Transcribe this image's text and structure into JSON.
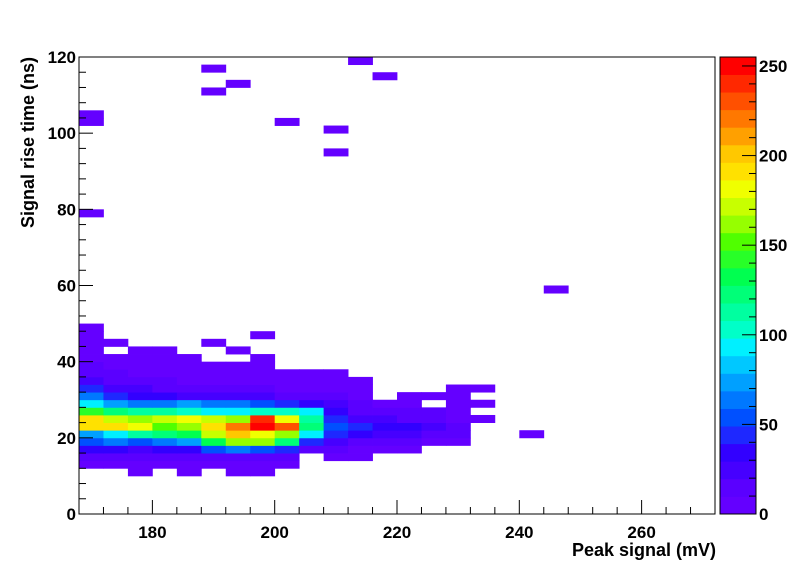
{
  "chart_data": {
    "type": "heatmap",
    "title": "",
    "xlabel": "Peak signal (mV)",
    "ylabel": "Signal rise time (ns)",
    "xlim": [
      168,
      272
    ],
    "ylim": [
      0,
      120
    ],
    "x_ticks": [
      180,
      200,
      220,
      240,
      260
    ],
    "y_ticks": [
      0,
      20,
      40,
      60,
      80,
      100,
      120
    ],
    "bin_width_x": 4,
    "bin_width_y": 2,
    "colorbar": {
      "min": 0,
      "max": 255,
      "ticks": [
        0,
        50,
        100,
        150,
        200,
        250
      ]
    },
    "cells": [
      [
        168,
        12,
        8
      ],
      [
        172,
        12,
        8
      ],
      [
        176,
        12,
        8
      ],
      [
        180,
        12,
        8
      ],
      [
        184,
        12,
        8
      ],
      [
        188,
        12,
        8
      ],
      [
        192,
        12,
        8
      ],
      [
        196,
        12,
        8
      ],
      [
        200,
        12,
        8
      ],
      [
        176,
        10,
        6
      ],
      [
        184,
        10,
        6
      ],
      [
        192,
        10,
        6
      ],
      [
        196,
        10,
        6
      ],
      [
        168,
        14,
        18
      ],
      [
        172,
        14,
        15
      ],
      [
        176,
        14,
        12
      ],
      [
        180,
        14,
        12
      ],
      [
        184,
        14,
        12
      ],
      [
        188,
        14,
        14
      ],
      [
        192,
        14,
        14
      ],
      [
        196,
        14,
        12
      ],
      [
        200,
        14,
        10
      ],
      [
        208,
        14,
        6
      ],
      [
        212,
        14,
        5
      ],
      [
        168,
        16,
        35
      ],
      [
        172,
        16,
        30
      ],
      [
        176,
        16,
        28
      ],
      [
        180,
        16,
        30
      ],
      [
        184,
        16,
        32
      ],
      [
        188,
        16,
        50
      ],
      [
        192,
        16,
        65
      ],
      [
        196,
        16,
        55
      ],
      [
        200,
        16,
        40
      ],
      [
        204,
        16,
        18
      ],
      [
        208,
        16,
        12
      ],
      [
        212,
        16,
        8
      ],
      [
        216,
        16,
        6
      ],
      [
        220,
        16,
        5
      ],
      [
        168,
        18,
        55
      ],
      [
        172,
        18,
        60
      ],
      [
        176,
        18,
        55
      ],
      [
        180,
        18,
        60
      ],
      [
        184,
        18,
        70
      ],
      [
        188,
        18,
        130
      ],
      [
        192,
        18,
        160
      ],
      [
        196,
        18,
        160
      ],
      [
        200,
        18,
        120
      ],
      [
        204,
        18,
        40
      ],
      [
        208,
        18,
        25
      ],
      [
        212,
        18,
        18
      ],
      [
        216,
        18,
        12
      ],
      [
        220,
        18,
        10
      ],
      [
        224,
        18,
        6
      ],
      [
        228,
        18,
        5
      ],
      [
        168,
        20,
        75
      ],
      [
        172,
        20,
        90
      ],
      [
        176,
        20,
        110
      ],
      [
        180,
        20,
        125
      ],
      [
        184,
        20,
        130
      ],
      [
        188,
        20,
        170
      ],
      [
        192,
        20,
        200
      ],
      [
        196,
        20,
        180
      ],
      [
        200,
        20,
        160
      ],
      [
        204,
        20,
        90
      ],
      [
        208,
        20,
        40
      ],
      [
        212,
        20,
        30
      ],
      [
        216,
        20,
        25
      ],
      [
        220,
        20,
        20
      ],
      [
        224,
        20,
        12
      ],
      [
        228,
        20,
        10
      ],
      [
        240,
        20,
        5
      ],
      [
        168,
        22,
        195
      ],
      [
        172,
        22,
        190
      ],
      [
        176,
        22,
        180
      ],
      [
        180,
        22,
        150
      ],
      [
        184,
        22,
        160
      ],
      [
        188,
        22,
        195
      ],
      [
        192,
        22,
        225
      ],
      [
        196,
        22,
        250
      ],
      [
        200,
        22,
        230
      ],
      [
        204,
        22,
        120
      ],
      [
        208,
        22,
        55
      ],
      [
        212,
        22,
        40
      ],
      [
        216,
        22,
        35
      ],
      [
        220,
        22,
        30
      ],
      [
        224,
        22,
        25
      ],
      [
        228,
        22,
        10
      ],
      [
        168,
        24,
        190
      ],
      [
        172,
        24,
        175
      ],
      [
        176,
        24,
        165
      ],
      [
        180,
        24,
        170
      ],
      [
        184,
        24,
        180
      ],
      [
        188,
        24,
        170
      ],
      [
        192,
        24,
        165
      ],
      [
        196,
        24,
        240
      ],
      [
        200,
        24,
        180
      ],
      [
        204,
        24,
        110
      ],
      [
        208,
        24,
        40
      ],
      [
        212,
        24,
        25
      ],
      [
        216,
        24,
        20
      ],
      [
        220,
        24,
        15
      ],
      [
        224,
        24,
        15
      ],
      [
        228,
        24,
        8
      ],
      [
        232,
        24,
        5
      ],
      [
        168,
        26,
        145
      ],
      [
        172,
        26,
        125
      ],
      [
        176,
        26,
        115
      ],
      [
        180,
        26,
        110
      ],
      [
        184,
        26,
        100
      ],
      [
        188,
        26,
        95
      ],
      [
        192,
        26,
        95
      ],
      [
        196,
        26,
        100
      ],
      [
        200,
        26,
        100
      ],
      [
        204,
        26,
        90
      ],
      [
        208,
        26,
        30
      ],
      [
        212,
        26,
        12
      ],
      [
        216,
        26,
        10
      ],
      [
        220,
        26,
        10
      ],
      [
        224,
        26,
        10
      ],
      [
        228,
        26,
        5
      ],
      [
        168,
        28,
        95
      ],
      [
        172,
        28,
        75
      ],
      [
        176,
        28,
        65
      ],
      [
        180,
        28,
        65
      ],
      [
        184,
        28,
        70
      ],
      [
        188,
        28,
        65
      ],
      [
        192,
        28,
        60
      ],
      [
        196,
        28,
        55
      ],
      [
        200,
        28,
        40
      ],
      [
        204,
        28,
        35
      ],
      [
        208,
        28,
        25
      ],
      [
        212,
        28,
        10
      ],
      [
        216,
        28,
        8
      ],
      [
        220,
        28,
        5
      ],
      [
        228,
        28,
        5
      ],
      [
        232,
        28,
        5
      ],
      [
        168,
        30,
        60
      ],
      [
        172,
        30,
        45
      ],
      [
        176,
        30,
        35
      ],
      [
        180,
        30,
        30
      ],
      [
        184,
        30,
        25
      ],
      [
        188,
        30,
        25
      ],
      [
        192,
        30,
        22
      ],
      [
        196,
        30,
        20
      ],
      [
        200,
        30,
        18
      ],
      [
        204,
        30,
        14
      ],
      [
        208,
        30,
        12
      ],
      [
        212,
        30,
        8
      ],
      [
        220,
        30,
        5
      ],
      [
        224,
        30,
        5
      ],
      [
        228,
        30,
        5
      ],
      [
        168,
        32,
        40
      ],
      [
        172,
        32,
        28
      ],
      [
        176,
        32,
        20
      ],
      [
        180,
        32,
        15
      ],
      [
        184,
        32,
        12
      ],
      [
        188,
        32,
        12
      ],
      [
        192,
        32,
        12
      ],
      [
        196,
        32,
        10
      ],
      [
        200,
        32,
        8
      ],
      [
        204,
        32,
        8
      ],
      [
        208,
        32,
        6
      ],
      [
        212,
        32,
        5
      ],
      [
        228,
        32,
        5
      ],
      [
        232,
        32,
        5
      ],
      [
        168,
        34,
        25
      ],
      [
        172,
        34,
        18
      ],
      [
        176,
        34,
        12
      ],
      [
        180,
        34,
        10
      ],
      [
        184,
        34,
        8
      ],
      [
        188,
        34,
        8
      ],
      [
        192,
        34,
        6
      ],
      [
        196,
        34,
        6
      ],
      [
        200,
        34,
        6
      ],
      [
        204,
        34,
        5
      ],
      [
        208,
        34,
        5
      ],
      [
        212,
        34,
        5
      ],
      [
        168,
        36,
        15
      ],
      [
        172,
        36,
        10
      ],
      [
        176,
        36,
        8
      ],
      [
        180,
        36,
        8
      ],
      [
        184,
        36,
        6
      ],
      [
        188,
        36,
        6
      ],
      [
        192,
        36,
        5
      ],
      [
        196,
        36,
        5
      ],
      [
        200,
        36,
        5
      ],
      [
        204,
        36,
        5
      ],
      [
        208,
        36,
        5
      ],
      [
        168,
        38,
        10
      ],
      [
        172,
        38,
        6
      ],
      [
        176,
        38,
        6
      ],
      [
        180,
        38,
        6
      ],
      [
        184,
        38,
        5
      ],
      [
        188,
        38,
        5
      ],
      [
        192,
        38,
        5
      ],
      [
        196,
        38,
        5
      ],
      [
        168,
        40,
        8
      ],
      [
        172,
        40,
        6
      ],
      [
        176,
        40,
        5
      ],
      [
        180,
        40,
        5
      ],
      [
        184,
        40,
        5
      ],
      [
        196,
        40,
        5
      ],
      [
        168,
        42,
        6
      ],
      [
        176,
        42,
        5
      ],
      [
        180,
        42,
        5
      ],
      [
        192,
        42,
        5
      ],
      [
        168,
        44,
        5
      ],
      [
        172,
        44,
        5
      ],
      [
        188,
        44,
        5
      ],
      [
        168,
        46,
        5
      ],
      [
        196,
        46,
        5
      ],
      [
        168,
        48,
        5
      ],
      [
        244,
        58,
        5
      ],
      [
        168,
        78,
        5
      ],
      [
        208,
        94,
        5
      ],
      [
        208,
        100,
        5
      ],
      [
        200,
        102,
        5
      ],
      [
        168,
        102,
        5
      ],
      [
        168,
        104,
        5
      ],
      [
        188,
        110,
        5
      ],
      [
        192,
        112,
        5
      ],
      [
        216,
        114,
        5
      ],
      [
        188,
        116,
        5
      ],
      [
        212,
        118,
        5
      ]
    ]
  }
}
